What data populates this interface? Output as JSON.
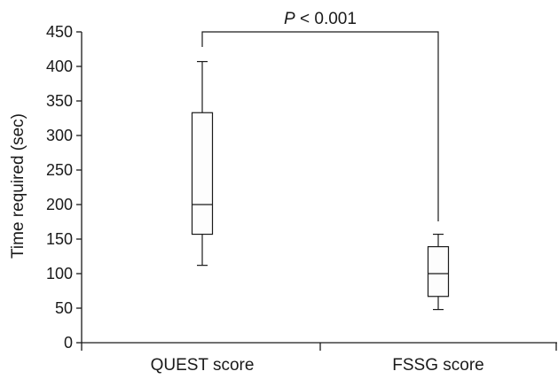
{
  "chart_data": {
    "type": "box",
    "title": "",
    "ylabel": "Time required (sec)",
    "xlabel": "",
    "ylim": [
      0,
      450
    ],
    "yticks": [
      "0",
      "50",
      "100",
      "150",
      "200",
      "250",
      "300",
      "350",
      "400",
      "450"
    ],
    "categories": [
      "QUEST score",
      "FSSG score"
    ],
    "boxes": [
      {
        "category": "QUEST score",
        "min": 112,
        "q1": 157,
        "median": 200,
        "q3": 333,
        "max": 407
      },
      {
        "category": "FSSG score",
        "min": 48,
        "q1": 67,
        "median": 100,
        "q3": 139,
        "max": 157
      }
    ],
    "annotation": {
      "p_symbol": "P",
      "p_rest": " < 0.001"
    },
    "grid": false
  }
}
